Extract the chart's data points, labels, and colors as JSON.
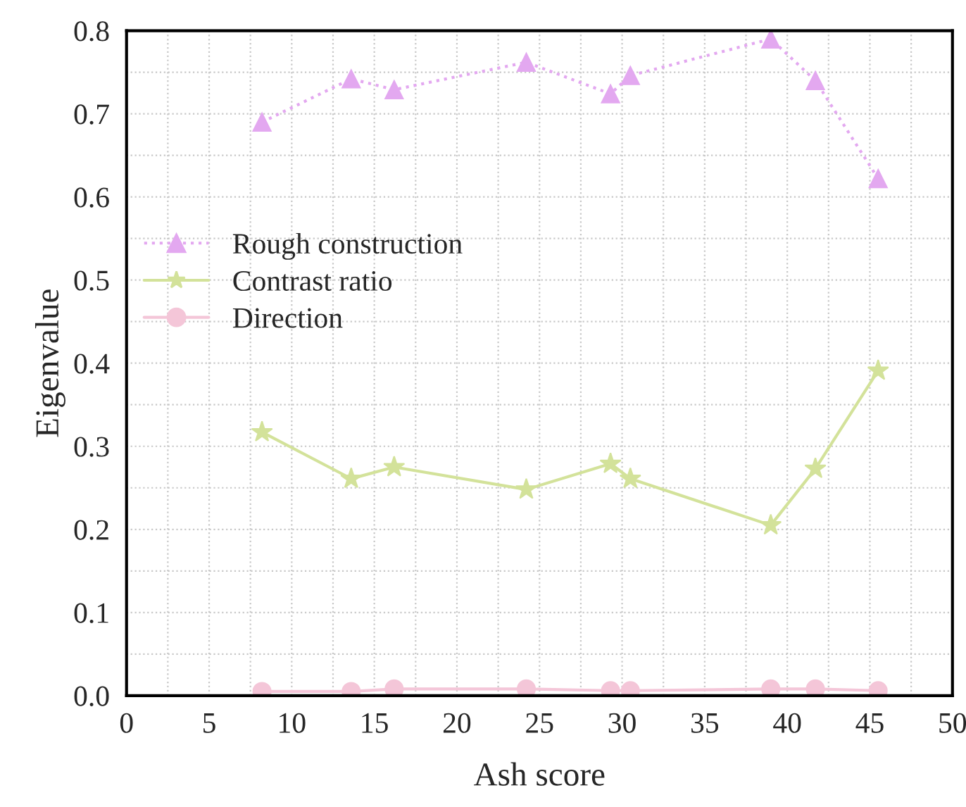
{
  "chart_data": {
    "type": "line",
    "xlabel": "Ash score",
    "ylabel": "Eigenvalue",
    "x": [
      8.2,
      13.6,
      16.2,
      24.2,
      29.3,
      30.5,
      39.0,
      41.7,
      45.5
    ],
    "series": [
      {
        "name": "Rough construction",
        "color": "#e3a8f0",
        "marker": "triangle",
        "line_style": "dotted",
        "values": [
          0.69,
          0.742,
          0.729,
          0.762,
          0.724,
          0.746,
          0.79,
          0.74,
          0.622
        ]
      },
      {
        "name": "Contrast ratio",
        "color": "#d3e29a",
        "marker": "star",
        "line_style": "solid",
        "values": [
          0.317,
          0.261,
          0.275,
          0.248,
          0.279,
          0.261,
          0.205,
          0.273,
          0.391
        ]
      },
      {
        "name": "Direction",
        "color": "#f4c6d8",
        "marker": "circle",
        "line_style": "solid",
        "values": [
          0.005,
          0.005,
          0.008,
          0.008,
          0.006,
          0.006,
          0.008,
          0.008,
          0.006
        ]
      }
    ],
    "xlim": [
      0,
      50
    ],
    "xticks": [
      0,
      5,
      10,
      15,
      20,
      25,
      30,
      35,
      40,
      45,
      50
    ],
    "ylim": [
      0,
      0.8
    ],
    "yticks": [
      {
        "value": 0,
        "label": "0.0"
      },
      0.1,
      0.2,
      0.3,
      0.4,
      0.5,
      0.6,
      0.7,
      0.8
    ],
    "grid": true,
    "legend": "left"
  }
}
